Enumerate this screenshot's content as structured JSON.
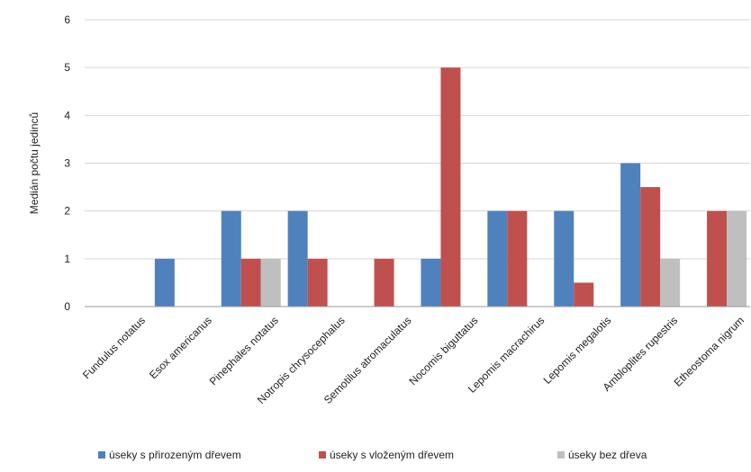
{
  "chart_data": {
    "type": "bar",
    "title": "",
    "xlabel": "",
    "ylabel": "Medián počtu jedinců",
    "ylim": [
      0,
      6
    ],
    "yticks": [
      0,
      1,
      2,
      3,
      4,
      5,
      6
    ],
    "grid": true,
    "legend_position": "bottom",
    "categories": [
      "Fundulus notatus",
      "Esox americanus",
      "Pinephales notatus",
      "Notropis chrysocephalus",
      "Semotilus atromaculatus",
      "Nocomis biguttatus",
      "Lepomis macrachirus",
      "Lepomis megalotis",
      "Ambloplites rupestris",
      "Etheostoma nigrum"
    ],
    "series": [
      {
        "name": "úseky s přirozeným dřevem",
        "color": "#4f81bd",
        "values": [
          0,
          1,
          2,
          2,
          0,
          1,
          2,
          2,
          3,
          0
        ]
      },
      {
        "name": "úseky s vloženým dřevem",
        "color": "#c0504d",
        "values": [
          0,
          0,
          1,
          1,
          1,
          5,
          2,
          0.5,
          2.5,
          2
        ]
      },
      {
        "name": "úseky bez dřeva",
        "color": "#bfbfbf",
        "values": [
          0,
          0,
          1,
          0,
          0,
          0,
          0,
          0,
          1,
          2
        ]
      }
    ]
  }
}
